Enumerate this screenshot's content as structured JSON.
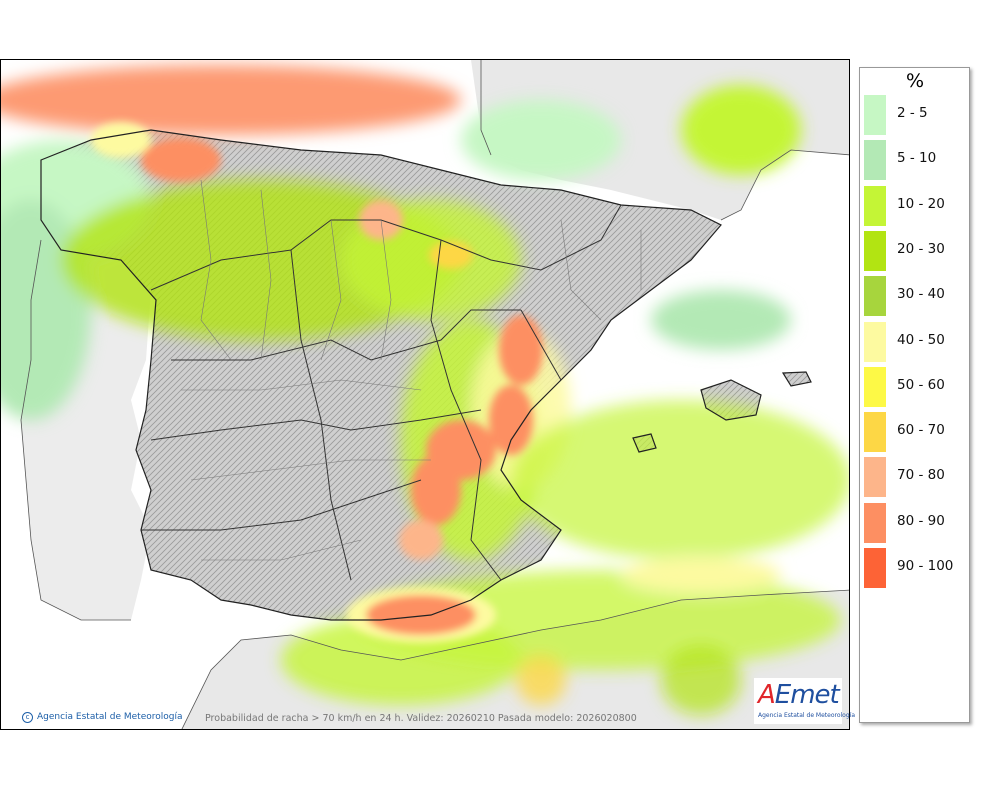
{
  "legend": {
    "title": "%",
    "items": [
      {
        "label": "2 - 5",
        "color": "#c6f7c4"
      },
      {
        "label": "5 - 10",
        "color": "#b3e9b5"
      },
      {
        "label": "10 - 20",
        "color": "#c4f536"
      },
      {
        "label": "20 - 30",
        "color": "#b2e412"
      },
      {
        "label": "30 - 40",
        "color": "#a7d53d"
      },
      {
        "label": "40 - 50",
        "color": "#fdfaa0"
      },
      {
        "label": "50 - 60",
        "color": "#fdf946"
      },
      {
        "label": "60 - 70",
        "color": "#fdd745"
      },
      {
        "label": "70 - 80",
        "color": "#fdb58a"
      },
      {
        "label": "80 - 90",
        "color": "#fd8f62"
      },
      {
        "label": "90 - 100",
        "color": "#fd6336"
      }
    ]
  },
  "footer": {
    "credit": "Agencia Estatal de Meteorología",
    "caption": "Probabilidad de racha > 70 km/h en 24 h. Validez: 20260210 Pasada modelo: 2026020800"
  },
  "logo": {
    "text": "AEmet",
    "subtitle": "Agencia Estatal de Meteorología"
  }
}
